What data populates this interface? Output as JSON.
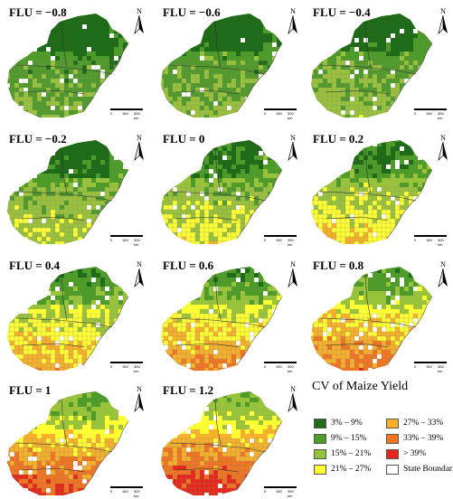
{
  "figure": {
    "panels": [
      {
        "label": "FLU = −0.8",
        "severity": 0.0
      },
      {
        "label": "FLU = −0.6",
        "severity": 0.05
      },
      {
        "label": "FLU = −0.4",
        "severity": 0.1
      },
      {
        "label": "FLU = −0.2",
        "severity": 0.2
      },
      {
        "label": "FLU = 0",
        "severity": 0.3
      },
      {
        "label": "FLU = 0.2",
        "severity": 0.4
      },
      {
        "label": "FLU = 0.4",
        "severity": 0.55
      },
      {
        "label": "FLU = 0.6",
        "severity": 0.65
      },
      {
        "label": "FLU = 0.8",
        "severity": 0.75
      },
      {
        "label": "FLU = 1",
        "severity": 0.88
      },
      {
        "label": "FLU = 1.2",
        "severity": 1.0
      }
    ],
    "north_arrow": "N",
    "scale_bar_ticks": [
      "0",
      "150",
      "300 km"
    ]
  },
  "legend": {
    "title": "CV of Maize Yield",
    "items": [
      {
        "label": "3% – 9%",
        "color": "#1f6b1a"
      },
      {
        "label": "9% – 15%",
        "color": "#4e9a2a"
      },
      {
        "label": "15% – 21%",
        "color": "#99c23c"
      },
      {
        "label": "21% – 27%",
        "color": "#ffff33"
      },
      {
        "label": "27% – 33%",
        "color": "#f7b02c"
      },
      {
        "label": "33% – 39%",
        "color": "#f27422"
      },
      {
        "label": "> 39%",
        "color": "#e8251b"
      },
      {
        "label": "State Boundaries",
        "color": "#ffffff"
      }
    ]
  }
}
